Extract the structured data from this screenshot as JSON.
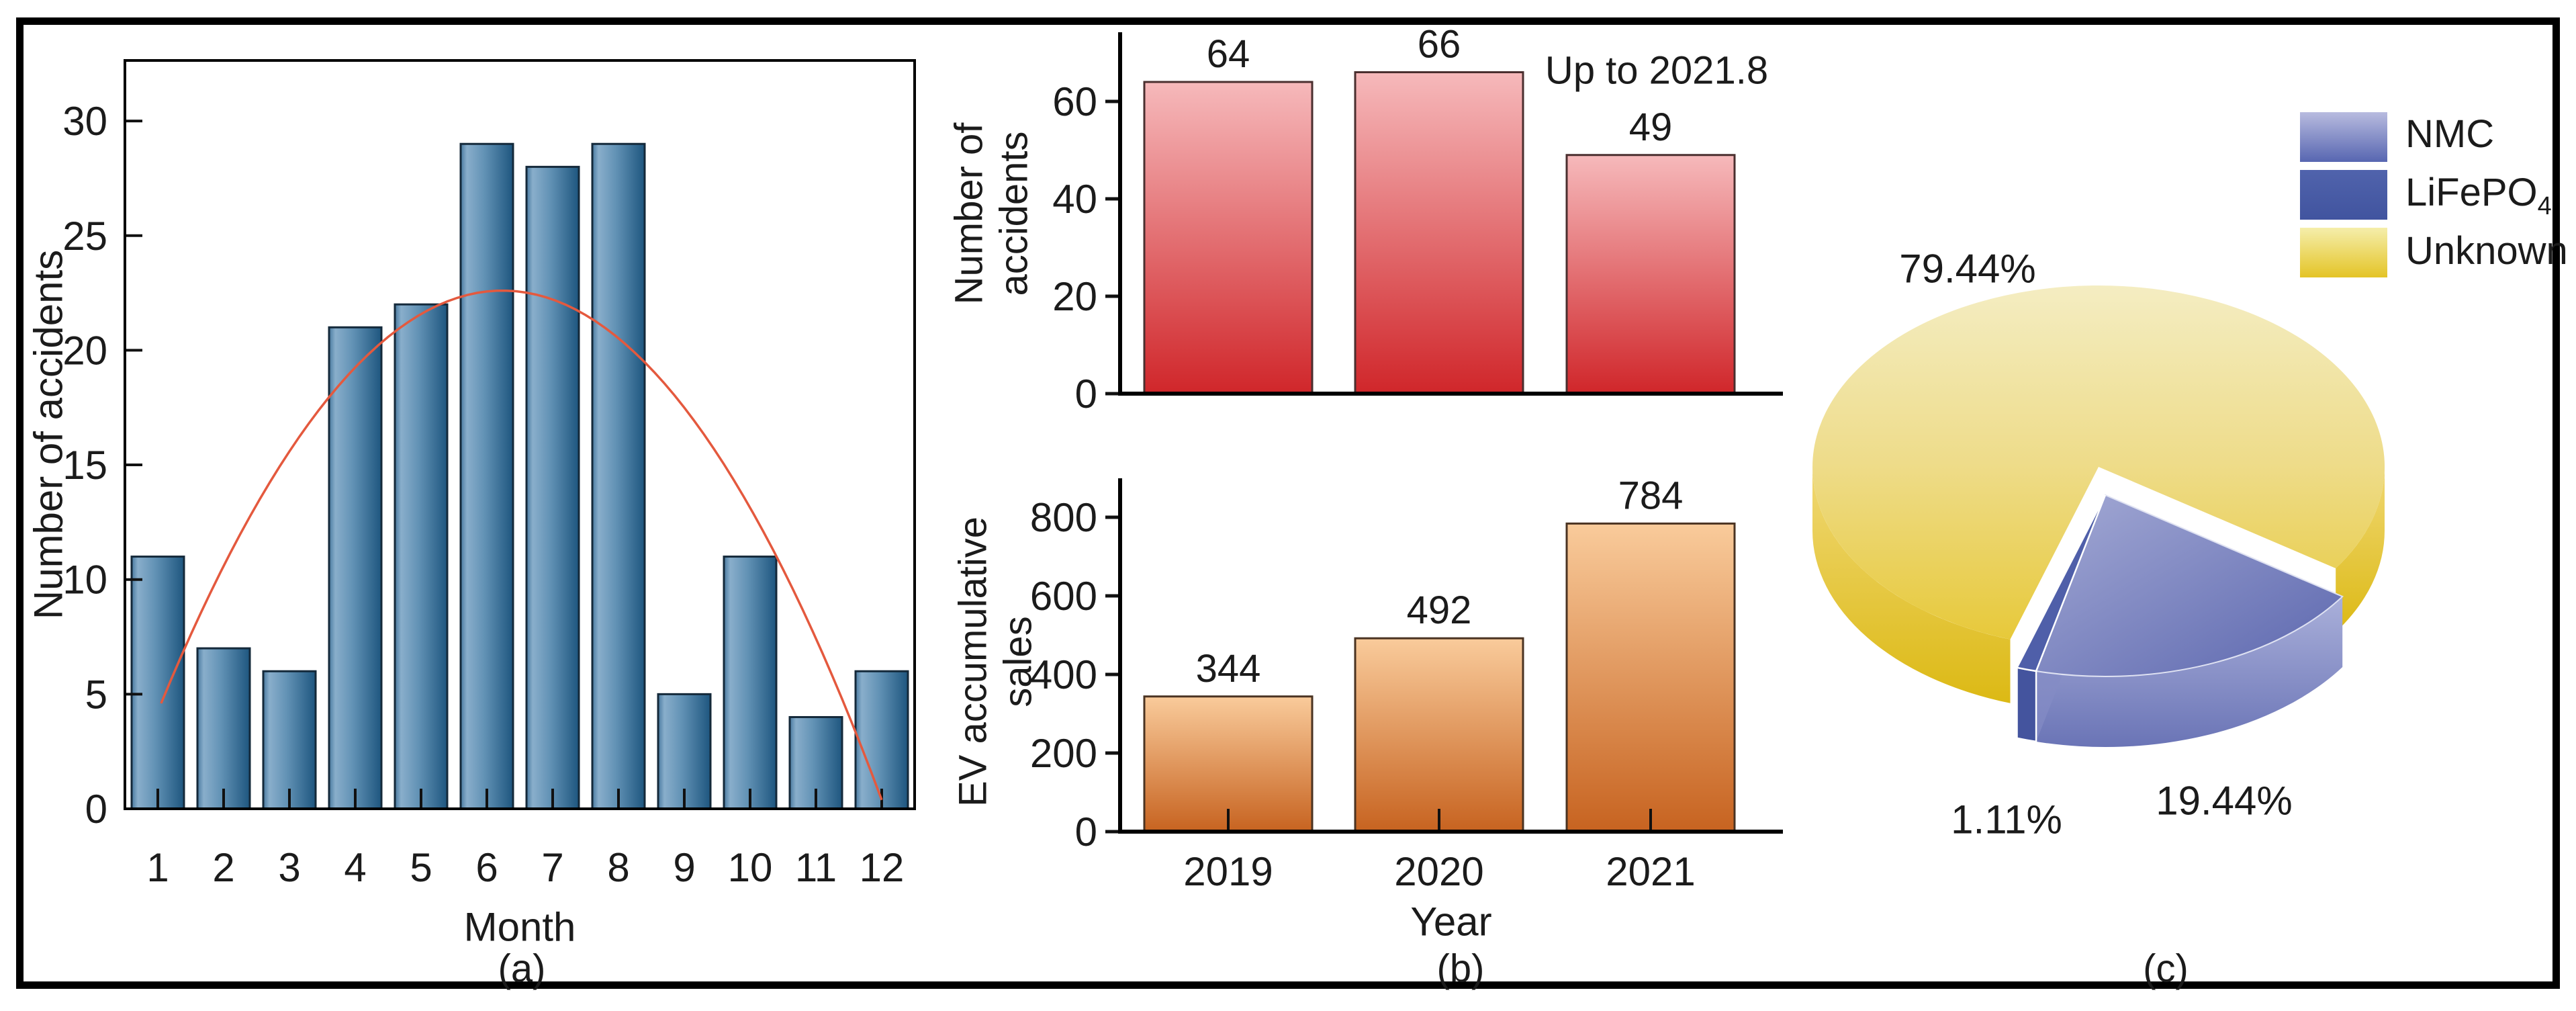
{
  "figure": {
    "panels": [
      {
        "caption": "(a)"
      },
      {
        "caption": "(b)"
      },
      {
        "caption": "(c)"
      }
    ]
  },
  "chart_data": [
    {
      "id": "monthly-accidents",
      "type": "bar",
      "panel": "a",
      "xlabel": "Month",
      "ylabel": "Number of accidents",
      "categories": [
        "1",
        "2",
        "3",
        "4",
        "5",
        "6",
        "7",
        "8",
        "9",
        "10",
        "11",
        "12"
      ],
      "values": [
        11,
        7,
        6,
        21,
        22,
        29,
        28,
        29,
        5,
        11,
        4,
        6
      ],
      "yticks": [
        0,
        5,
        10,
        15,
        20,
        25,
        30
      ],
      "ylim": [
        0,
        32.6
      ],
      "grid": false,
      "fit_curve": {
        "shape": "parabola",
        "points_month_value": [
          [
            1.05,
            4.6
          ],
          [
            6.3,
            22.6
          ],
          [
            12.05,
            0
          ]
        ],
        "color": "#e4593e"
      },
      "bar_color_light": "#89aecb",
      "bar_color_dark": "#1e567f"
    },
    {
      "id": "yearly-accidents",
      "type": "bar",
      "panel": "b-top",
      "ylabel": "Number of accidents",
      "ylabel_lines": [
        "Number of",
        "accidents"
      ],
      "categories": [
        "2019",
        "2020",
        "2021"
      ],
      "show_x_labels": false,
      "values": [
        64,
        66,
        49
      ],
      "yticks": [
        0,
        20,
        40,
        60
      ],
      "ylim": [
        0,
        74
      ],
      "annotation": "Up to 2021.8",
      "bar_color_light": "#f6b9bb",
      "bar_color_dark": "#d0262a"
    },
    {
      "id": "ev-accumulative-sales",
      "type": "bar",
      "panel": "b-bottom",
      "xlabel": "Year",
      "ylabel": "EV accumulative sales",
      "ylabel_lines": [
        "EV accumulative",
        "sales"
      ],
      "categories": [
        "2019",
        "2020",
        "2021"
      ],
      "values": [
        344,
        492,
        784
      ],
      "yticks": [
        0,
        200,
        400,
        600,
        800
      ],
      "ylim": [
        0,
        900
      ],
      "bar_color_light": "#f9cb9b",
      "bar_color_dark": "#c76320"
    },
    {
      "id": "battery-type-share",
      "type": "pie",
      "panel": "c",
      "slices": [
        {
          "label": "NMC",
          "value": 19.44,
          "text": "19.44%",
          "color": "#7b84c0"
        },
        {
          "label": "LiFePO4",
          "value": 1.11,
          "text": "1.11%",
          "color": "#44549e"
        },
        {
          "label": "Unknown",
          "value": 79.44,
          "text": "79.44%",
          "color": "#e9cb3d"
        }
      ],
      "legend_entries": [
        {
          "base": "NMC",
          "sub": ""
        },
        {
          "base": "LiFePO",
          "sub": "4"
        },
        {
          "base": "Unknown",
          "sub": ""
        }
      ],
      "legend_position": "top-right",
      "style": "3d-exploded"
    }
  ],
  "colors": {
    "curve_red": "#e4593e",
    "axis_black": "#000000",
    "pie_yellow_top": "#e7c93a",
    "pie_yellow_side": "#dcb914",
    "pie_wedge_top": "#5b66ae",
    "pie_wedge_side": "#6a74b6",
    "pie_sliver": "#44549e"
  }
}
